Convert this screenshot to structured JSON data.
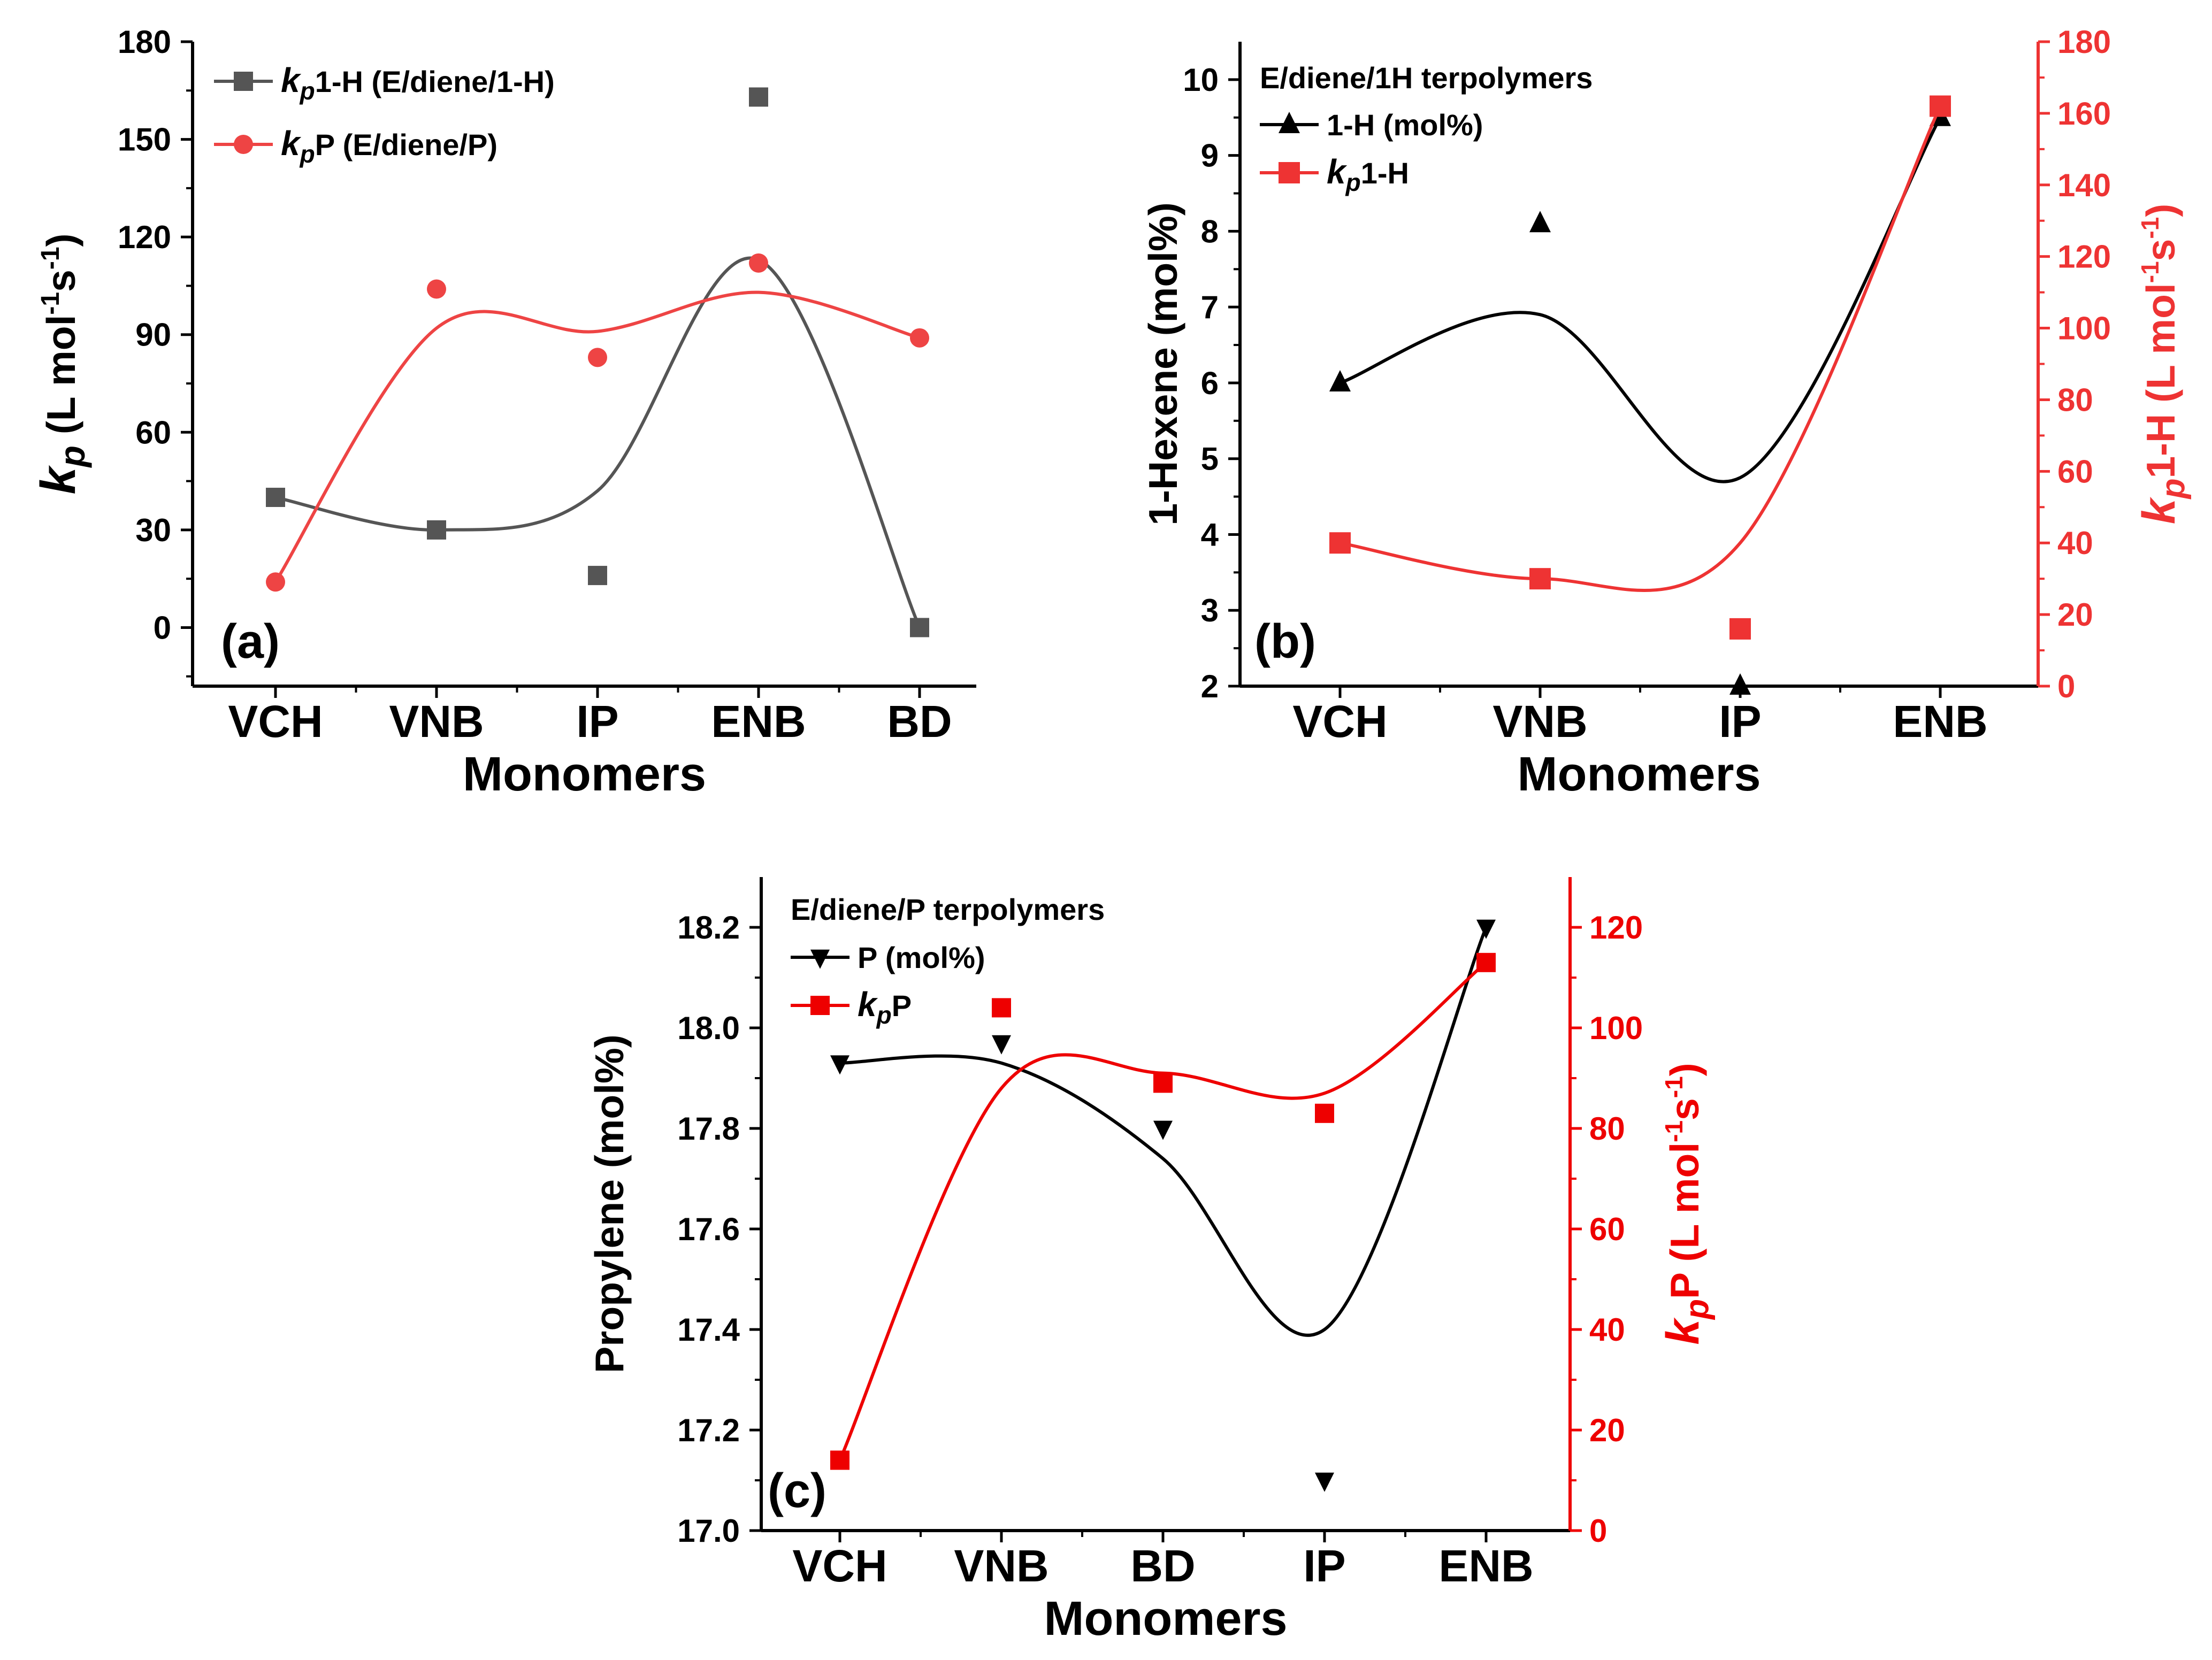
{
  "chart_data": [
    {
      "type": "line",
      "panel_label": "(a)",
      "xlabel": "Monomers",
      "ylabel": {
        "sym": "k",
        "sub": "p",
        "rest": " (L mol",
        "sup1": "-1",
        "mid": "s",
        "sup2": "-1",
        "end": ")"
      },
      "categories": [
        "VCH",
        "VNB",
        "IP",
        "ENB",
        "BD"
      ],
      "ylim": [
        -18,
        180
      ],
      "yticks": [
        "0",
        "30",
        "60",
        "90",
        "120",
        "150",
        "180"
      ],
      "series": [
        {
          "name": "kp1-H (E/diene/1-H)",
          "legend": {
            "sym": "k",
            "sub": "p",
            "rest": "1-H (E/diene/1-H)"
          },
          "color": "#555555",
          "marker": "square",
          "values": [
            40,
            30,
            16,
            163,
            0
          ]
        },
        {
          "name": "kpP (E/diene/P)",
          "legend": {
            "sym": "k",
            "sub": "p",
            "rest": "P (E/diene/P)"
          },
          "color": "#ee4444",
          "marker": "circle",
          "values": [
            14,
            104,
            83,
            112,
            89
          ]
        }
      ]
    },
    {
      "type": "line",
      "panel_label": "(b)",
      "title": "E/diene/1H terpolymers",
      "xlabel": "Monomers",
      "ylabel_left": "1-Hexene (mol%)",
      "ylabel_right": {
        "sym": "k",
        "sub": "p",
        "rest": "1-H (L mol",
        "sup1": "-1",
        "mid": "s",
        "sup2": "-1",
        "end": ")"
      },
      "categories": [
        "VCH",
        "VNB",
        "IP",
        "ENB"
      ],
      "ylim_left": [
        2,
        10.5
      ],
      "ylim_right": [
        0,
        180
      ],
      "yticks_left": [
        "2",
        "3",
        "4",
        "5",
        "6",
        "7",
        "8",
        "9",
        "10"
      ],
      "yticks_right": [
        "0",
        "20",
        "40",
        "60",
        "80",
        "100",
        "120",
        "140",
        "160",
        "180"
      ],
      "series": [
        {
          "name": "1-H (mol%)",
          "legend": {
            "rest": "1-H (mol%)"
          },
          "axis": "left",
          "color": "#000000",
          "marker": "triangle-up",
          "values": [
            6.0,
            8.1,
            2.0,
            9.5
          ]
        },
        {
          "name": "kp1-H",
          "legend": {
            "sym": "k",
            "sub": "p",
            "rest": "1-H"
          },
          "axis": "right",
          "color": "#ee3333",
          "marker": "square",
          "values": [
            40,
            30,
            16,
            162
          ]
        }
      ]
    },
    {
      "type": "line",
      "panel_label": "(c)",
      "title": "E/diene/P terpolymers",
      "xlabel": "Monomers",
      "ylabel_left": "Propylene (mol%)",
      "ylabel_right": {
        "sym": "k",
        "sub": "p",
        "rest": "P (L mol",
        "sup1": "-1",
        "mid": "s",
        "sup2": "-1",
        "end": ")"
      },
      "categories": [
        "VCH",
        "VNB",
        "BD",
        "IP",
        "ENB"
      ],
      "ylim_left": [
        17.0,
        18.3
      ],
      "ylim_right": [
        0,
        130
      ],
      "yticks_left": [
        "17.0",
        "17.2",
        "17.4",
        "17.6",
        "17.8",
        "18.0",
        "18.2"
      ],
      "yticks_right": [
        "0",
        "20",
        "40",
        "60",
        "80",
        "100",
        "120"
      ],
      "series": [
        {
          "name": "P (mol%)",
          "legend": {
            "rest": "P (mol%)"
          },
          "axis": "left",
          "color": "#000000",
          "marker": "triangle-down",
          "values": [
            17.93,
            17.97,
            17.8,
            17.1,
            18.2
          ]
        },
        {
          "name": "kpP",
          "legend": {
            "sym": "k",
            "sub": "p",
            "rest": "P"
          },
          "axis": "right",
          "color": "#ee0000",
          "marker": "square",
          "values": [
            14,
            104,
            89,
            83,
            113
          ]
        }
      ]
    }
  ]
}
